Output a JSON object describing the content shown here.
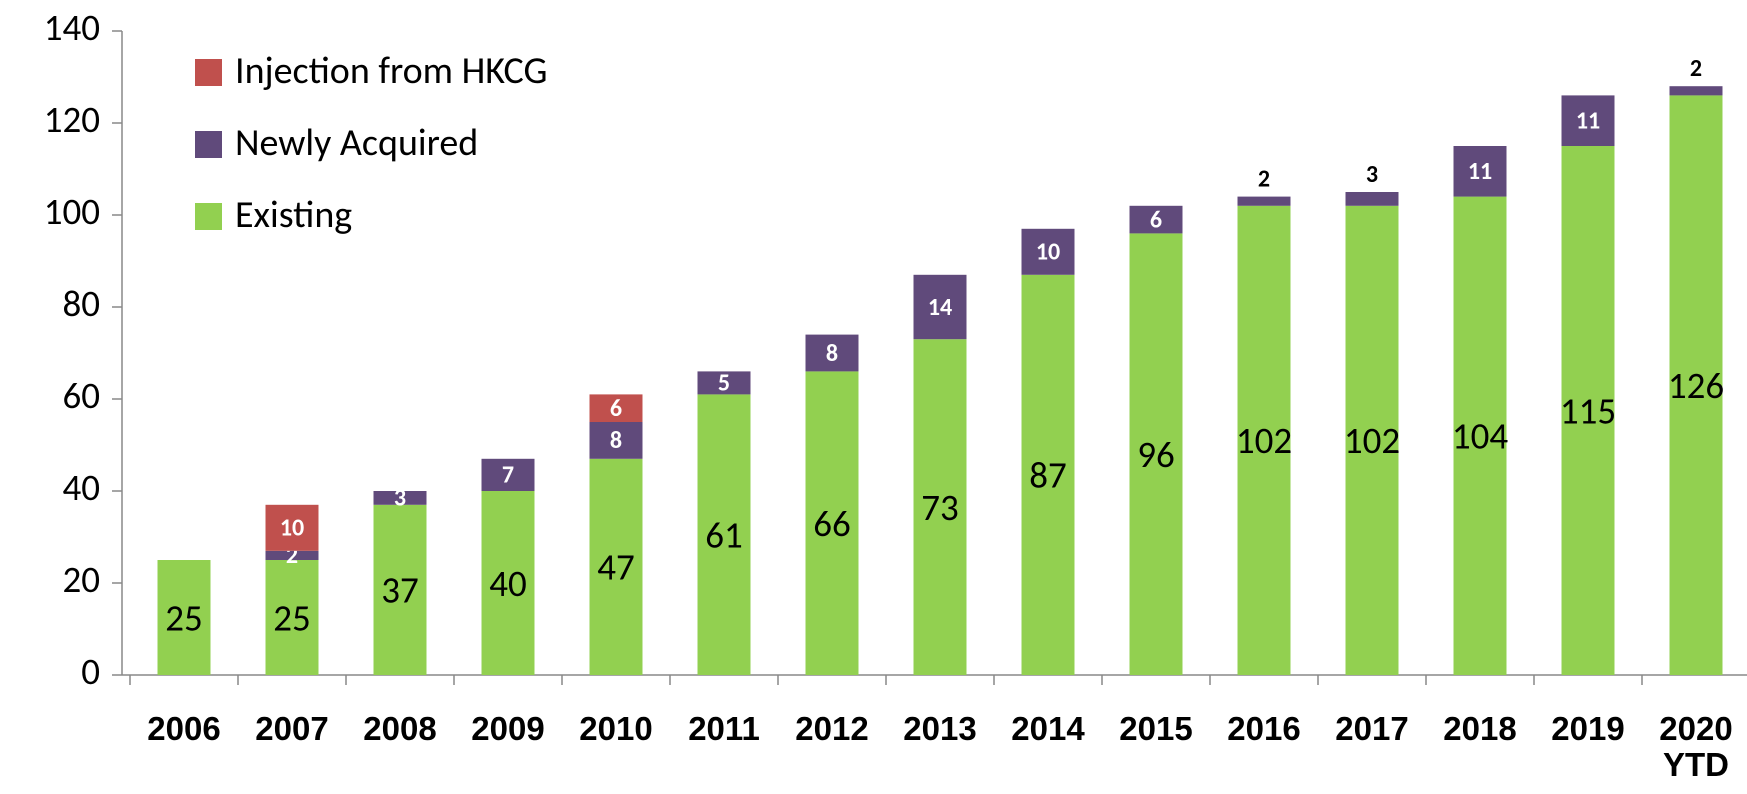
{
  "chart_data": {
    "type": "stacked_bar",
    "categories": [
      "2006",
      "2007",
      "2008",
      "2009",
      "2010",
      "2011",
      "2012",
      "2013",
      "2014",
      "2015",
      "2016",
      "2017",
      "2018",
      "2019",
      "2020 YTD"
    ],
    "series": [
      {
        "name": "Existing",
        "color": "#92d050",
        "values": [
          25,
          25,
          37,
          40,
          47,
          61,
          66,
          73,
          87,
          96,
          102,
          102,
          104,
          115,
          126
        ]
      },
      {
        "name": "Newly Acquired",
        "color": "#604a7b",
        "values": [
          null,
          2,
          3,
          7,
          8,
          5,
          8,
          14,
          10,
          6,
          2,
          3,
          11,
          11,
          2
        ]
      },
      {
        "name": "Injection from HKCG",
        "color": "#c0504d",
        "values": [
          null,
          10,
          null,
          null,
          6,
          null,
          null,
          null,
          null,
          null,
          null,
          null,
          null,
          null,
          null
        ]
      }
    ],
    "ylim": [
      0,
      140
    ],
    "yticks": [
      0,
      20,
      40,
      60,
      80,
      100,
      120,
      140
    ],
    "grid": false,
    "legend": "top-left"
  }
}
